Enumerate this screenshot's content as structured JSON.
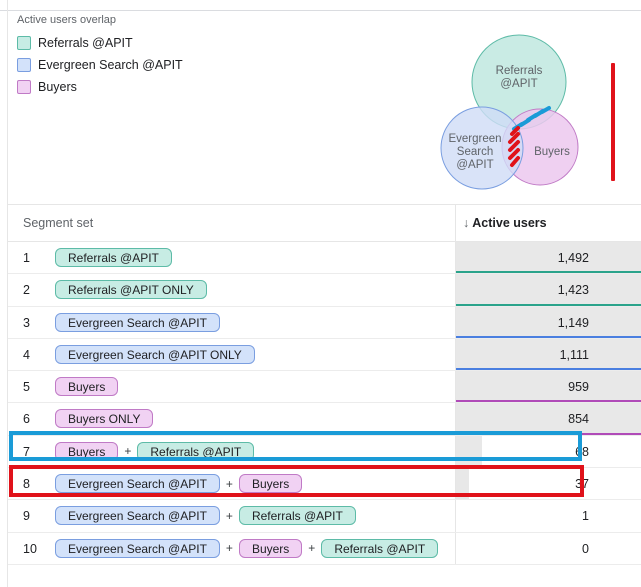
{
  "overlap": {
    "title": "Active users overlap",
    "legend": [
      {
        "label": "Referrals @APIT",
        "color": "#c7ece4",
        "border": "#5dbba7"
      },
      {
        "label": "Evergreen Search @APIT",
        "color": "#d3e2fa",
        "border": "#7a9ee0"
      },
      {
        "label": "Buyers",
        "color": "#f1d2f3",
        "border": "#c07ac6"
      }
    ],
    "venn": {
      "referrals": [
        "Referrals",
        "@APIT"
      ],
      "evergreen": [
        "Evergreen",
        "Search",
        "@APIT"
      ],
      "buyers": [
        "Buyers"
      ]
    }
  },
  "table": {
    "segment_header": "Segment set",
    "metric_header": "Active users",
    "rows": [
      {
        "num": "1",
        "chips": [
          {
            "label": "Referrals @APIT",
            "kind": "ref"
          }
        ],
        "value": "1,492",
        "fraction": 1.0,
        "line": "#2aa38b"
      },
      {
        "num": "2",
        "chips": [
          {
            "label": "Referrals @APIT ONLY",
            "kind": "ref"
          }
        ],
        "value": "1,423",
        "fraction": 1.0,
        "line": "#2aa38b"
      },
      {
        "num": "3",
        "chips": [
          {
            "label": "Evergreen Search @APIT",
            "kind": "eve"
          }
        ],
        "value": "1,149",
        "fraction": 1.0,
        "line": "#4a7fe0"
      },
      {
        "num": "4",
        "chips": [
          {
            "label": "Evergreen Search @APIT ONLY",
            "kind": "eve"
          }
        ],
        "value": "1,111",
        "fraction": 1.0,
        "line": "#4a7fe0"
      },
      {
        "num": "5",
        "chips": [
          {
            "label": "Buyers",
            "kind": "buy"
          }
        ],
        "value": "959",
        "fraction": 1.0,
        "line": "#b04bb8"
      },
      {
        "num": "6",
        "chips": [
          {
            "label": "Buyers ONLY",
            "kind": "buy"
          }
        ],
        "value": "854",
        "fraction": 1.0,
        "line": "#b04bb8"
      },
      {
        "num": "7",
        "chips": [
          {
            "label": "Buyers",
            "kind": "buy"
          },
          {
            "label": "Referrals @APIT",
            "kind": "ref"
          }
        ],
        "value": "68",
        "fraction": 0.14,
        "line": ""
      },
      {
        "num": "8",
        "chips": [
          {
            "label": "Evergreen Search @APIT",
            "kind": "eve"
          },
          {
            "label": "Buyers",
            "kind": "buy"
          }
        ],
        "value": "37",
        "fraction": 0.07,
        "line": ""
      },
      {
        "num": "9",
        "chips": [
          {
            "label": "Evergreen Search @APIT",
            "kind": "eve"
          },
          {
            "label": "Referrals @APIT",
            "kind": "ref"
          }
        ],
        "value": "1",
        "fraction": 0.0,
        "line": ""
      },
      {
        "num": "10",
        "chips": [
          {
            "label": "Evergreen Search @APIT",
            "kind": "eve"
          },
          {
            "label": "Buyers",
            "kind": "buy"
          },
          {
            "label": "Referrals @APIT",
            "kind": "ref"
          }
        ],
        "value": "0",
        "fraction": 0.0,
        "line": ""
      }
    ]
  },
  "colors": {
    "highlight_blue": "#1a9bd7",
    "highlight_red": "#e0121a"
  }
}
